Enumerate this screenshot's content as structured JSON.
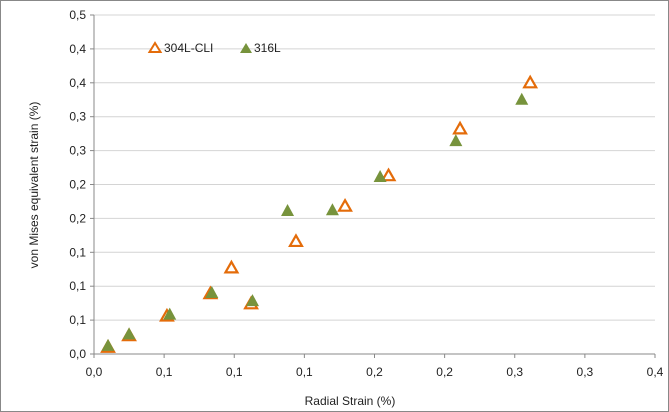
{
  "chart_data": {
    "type": "scatter",
    "xlabel": "Radial Strain (%)",
    "ylabel": "von Mises equivalent strain (%)",
    "xlim": [
      0,
      0.4
    ],
    "ylim": [
      0,
      0.5
    ],
    "x_tick_values": [
      0,
      0.05,
      0.1,
      0.15,
      0.2,
      0.25,
      0.3,
      0.35,
      0.4
    ],
    "x_tick_labels": [
      "0,0",
      "0,1",
      "0,1",
      "0,1",
      "0,2",
      "0,2",
      "0,3",
      "0,3",
      "0,4"
    ],
    "y_tick_values": [
      0,
      0.05,
      0.1,
      0.15,
      0.2,
      0.25,
      0.3,
      0.35,
      0.4,
      0.45,
      0.5
    ],
    "y_tick_labels": [
      "0,0",
      "0,1",
      "0,1",
      "0,1",
      "0,2",
      "0,2",
      "0,3",
      "0,3",
      "0,4",
      "0,4",
      "0,5"
    ],
    "grid": {
      "horizontal": true,
      "vertical": false
    },
    "legend_position": "top-left",
    "series": [
      {
        "name": "304L-CLI",
        "marker": "open-triangle",
        "color": "#E46C0A",
        "points": [
          [
            0.01,
            0.01
          ],
          [
            0.025,
            0.027
          ],
          [
            0.052,
            0.056
          ],
          [
            0.083,
            0.089
          ],
          [
            0.098,
            0.127
          ],
          [
            0.144,
            0.166
          ],
          [
            0.112,
            0.074
          ],
          [
            0.179,
            0.218
          ],
          [
            0.21,
            0.263
          ],
          [
            0.261,
            0.332
          ],
          [
            0.311,
            0.4
          ]
        ]
      },
      {
        "name": "316L",
        "marker": "filled-triangle",
        "color": "#77933C",
        "points": [
          [
            0.01,
            0.012
          ],
          [
            0.025,
            0.029
          ],
          [
            0.054,
            0.058
          ],
          [
            0.084,
            0.09
          ],
          [
            0.113,
            0.078
          ],
          [
            0.17,
            0.212
          ],
          [
            0.204,
            0.261
          ],
          [
            0.258,
            0.314
          ],
          [
            0.305,
            0.375
          ],
          [
            0.138,
            0.211
          ]
        ]
      }
    ]
  }
}
